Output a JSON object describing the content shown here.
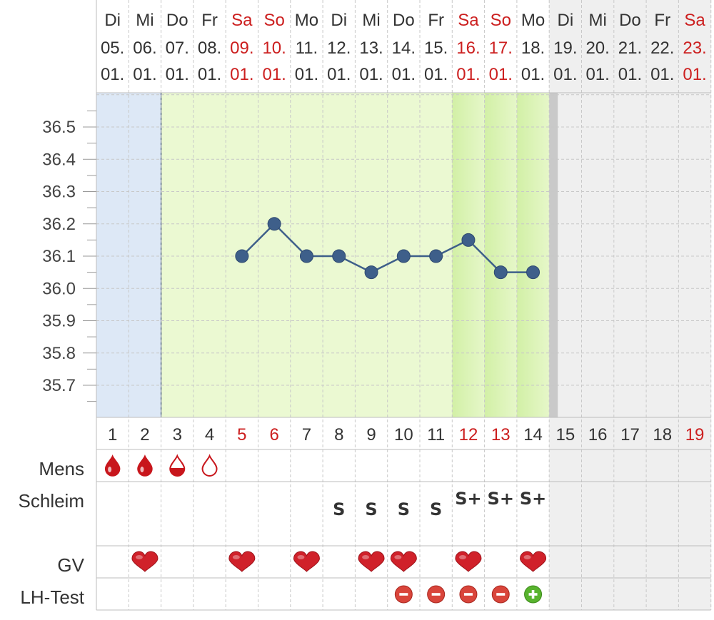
{
  "colors": {
    "weekend_red": "#cc1f1f",
    "weekday_text": "#333333",
    "line_blue": "#3e5f8a",
    "period_blue": "#dde8f6",
    "fertile_green": "#ebf9d2",
    "peak_green": "#d2f0a6",
    "future_gray": "#efefef",
    "drop_red": "#c8161c",
    "heart_red": "#d0212a",
    "lh_negative": "#d9453b",
    "lh_positive": "#58b32e"
  },
  "chart_data": {
    "type": "line",
    "days": [
      {
        "cycle_day": "1",
        "weekday": "Di",
        "date": "05.",
        "month": "01.",
        "weekend": false,
        "phase": "period",
        "mens": "heavy",
        "mucus": "",
        "gv": false,
        "lh": ""
      },
      {
        "cycle_day": "2",
        "weekday": "Mi",
        "date": "06.",
        "month": "01.",
        "weekend": false,
        "phase": "period",
        "mens": "heavy",
        "mucus": "",
        "gv": true,
        "lh": ""
      },
      {
        "cycle_day": "3",
        "weekday": "Do",
        "date": "07.",
        "month": "01.",
        "weekend": false,
        "phase": "fertile",
        "mens": "medium",
        "mucus": "",
        "gv": false,
        "lh": ""
      },
      {
        "cycle_day": "4",
        "weekday": "Fr",
        "date": "08.",
        "month": "01.",
        "weekend": false,
        "phase": "fertile",
        "mens": "light",
        "mucus": "",
        "gv": false,
        "lh": ""
      },
      {
        "cycle_day": "5",
        "weekday": "Sa",
        "date": "09.",
        "month": "01.",
        "weekend": true,
        "phase": "fertile",
        "mens": "",
        "mucus": "",
        "gv": true,
        "lh": ""
      },
      {
        "cycle_day": "6",
        "weekday": "So",
        "date": "10.",
        "month": "01.",
        "weekend": true,
        "phase": "fertile",
        "mens": "",
        "mucus": "",
        "gv": false,
        "lh": ""
      },
      {
        "cycle_day": "7",
        "weekday": "Mo",
        "date": "11.",
        "month": "01.",
        "weekend": false,
        "phase": "fertile",
        "mens": "",
        "mucus": "",
        "gv": true,
        "lh": ""
      },
      {
        "cycle_day": "8",
        "weekday": "Di",
        "date": "12.",
        "month": "01.",
        "weekend": false,
        "phase": "fertile",
        "mens": "",
        "mucus": "S",
        "gv": false,
        "lh": ""
      },
      {
        "cycle_day": "9",
        "weekday": "Mi",
        "date": "13.",
        "month": "01.",
        "weekend": false,
        "phase": "fertile",
        "mens": "",
        "mucus": "S",
        "gv": true,
        "lh": ""
      },
      {
        "cycle_day": "10",
        "weekday": "Do",
        "date": "14.",
        "month": "01.",
        "weekend": false,
        "phase": "fertile",
        "mens": "",
        "mucus": "S",
        "gv": true,
        "lh": "negative"
      },
      {
        "cycle_day": "11",
        "weekday": "Fr",
        "date": "15.",
        "month": "01.",
        "weekend": false,
        "phase": "fertile",
        "mens": "",
        "mucus": "S",
        "gv": false,
        "lh": "negative"
      },
      {
        "cycle_day": "12",
        "weekday": "Sa",
        "date": "16.",
        "month": "01.",
        "weekend": true,
        "phase": "peak",
        "mens": "",
        "mucus": "S+",
        "gv": true,
        "lh": "negative"
      },
      {
        "cycle_day": "13",
        "weekday": "So",
        "date": "17.",
        "month": "01.",
        "weekend": true,
        "phase": "peak",
        "mens": "",
        "mucus": "S+",
        "gv": false,
        "lh": "negative"
      },
      {
        "cycle_day": "14",
        "weekday": "Mo",
        "date": "18.",
        "month": "01.",
        "weekend": false,
        "phase": "peak",
        "mens": "",
        "mucus": "S+",
        "gv": true,
        "lh": "positive"
      },
      {
        "cycle_day": "15",
        "weekday": "Di",
        "date": "19.",
        "month": "01.",
        "weekend": false,
        "phase": "future",
        "mens": "",
        "mucus": "",
        "gv": false,
        "lh": ""
      },
      {
        "cycle_day": "16",
        "weekday": "Mi",
        "date": "20.",
        "month": "01.",
        "weekend": false,
        "phase": "future",
        "mens": "",
        "mucus": "",
        "gv": false,
        "lh": ""
      },
      {
        "cycle_day": "17",
        "weekday": "Do",
        "date": "21.",
        "month": "01.",
        "weekend": false,
        "phase": "future",
        "mens": "",
        "mucus": "",
        "gv": false,
        "lh": ""
      },
      {
        "cycle_day": "18",
        "weekday": "Fr",
        "date": "22.",
        "month": "01.",
        "weekend": false,
        "phase": "future",
        "mens": "",
        "mucus": "",
        "gv": false,
        "lh": ""
      },
      {
        "cycle_day": "19",
        "weekday": "Sa",
        "date": "23.",
        "month": "01.",
        "weekend": true,
        "phase": "future",
        "mens": "",
        "mucus": "",
        "gv": false,
        "lh": ""
      }
    ],
    "series": [
      {
        "points": [
          {
            "cycle_day": 5,
            "y": 36.1
          },
          {
            "cycle_day": 6,
            "y": 36.2
          },
          {
            "cycle_day": 7,
            "y": 36.1
          },
          {
            "cycle_day": 8,
            "y": 36.1
          },
          {
            "cycle_day": 9,
            "y": 36.05
          },
          {
            "cycle_day": 10,
            "y": 36.1
          },
          {
            "cycle_day": 11,
            "y": 36.1
          },
          {
            "cycle_day": 12,
            "y": 36.15
          },
          {
            "cycle_day": 13,
            "y": 36.05
          },
          {
            "cycle_day": 14,
            "y": 36.05
          }
        ]
      }
    ],
    "y_ticks": [
      "36.5",
      "36.4",
      "36.3",
      "36.2",
      "36.1",
      "36.0",
      "35.9",
      "35.8",
      "35.7"
    ],
    "ylim": [
      35.6,
      36.6
    ],
    "row_labels": {
      "mens": "Mens",
      "mucus": "Schleim",
      "gv": "GV",
      "lh": "LH-Test"
    }
  }
}
